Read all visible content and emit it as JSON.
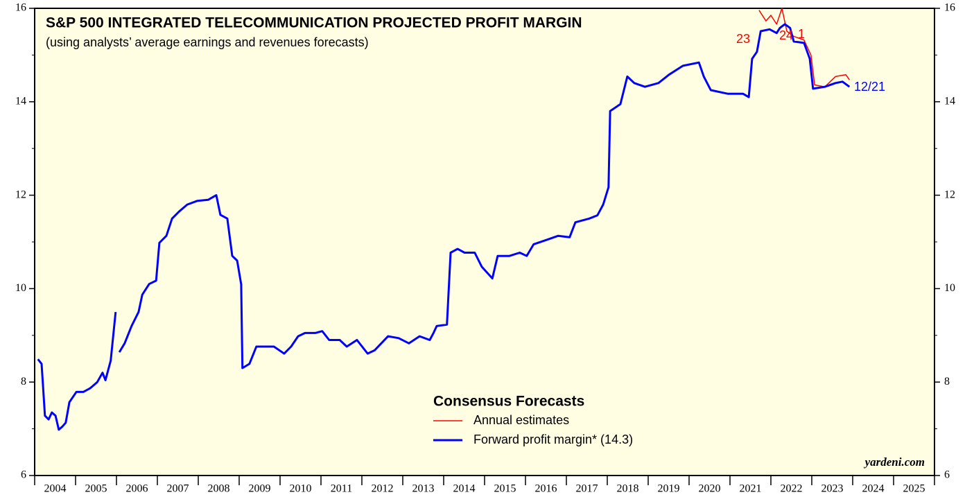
{
  "chart_data": {
    "type": "line",
    "title": "S&P 500 INTEGRATED TELECOMMUNICATION PROJECTED PROFIT MARGIN",
    "subtitle": "(using analysts’ average earnings and revenues forecasts)",
    "legend_title": "Consensus Forecasts",
    "source": "yardeni.com",
    "annotations": [
      "23",
      "24",
      "1",
      "12/21"
    ],
    "xlim": [
      2004,
      2026
    ],
    "xticks": [
      2004,
      2005,
      2006,
      2007,
      2008,
      2009,
      2010,
      2011,
      2012,
      2013,
      2014,
      2015,
      2016,
      2017,
      2018,
      2019,
      2020,
      2021,
      2022,
      2023,
      2024,
      2025,
      2026
    ],
    "categories": [
      "2004",
      "2005",
      "2006",
      "2007",
      "2008",
      "2009",
      "2010",
      "2011",
      "2012",
      "2013",
      "2014",
      "2015",
      "2016",
      "2017",
      "2018",
      "2019",
      "2020",
      "2021",
      "2022",
      "2023",
      "2024",
      "2025"
    ],
    "ylim": [
      6,
      16
    ],
    "yticks": [
      6,
      8,
      10,
      12,
      14,
      16
    ],
    "yminor": [
      7,
      9,
      11,
      13,
      15
    ],
    "series": [
      {
        "name": "Annual estimates",
        "color": "#ff0000",
        "x": [
          2021.71,
          2021.88,
          2022.0,
          2022.14,
          2022.27,
          2022.39,
          2022.56,
          2022.81,
          2022.98,
          2023.07,
          2023.32,
          2023.58,
          2023.83,
          2023.92
        ],
        "values": [
          15.96,
          15.73,
          15.85,
          15.66,
          16.0,
          15.51,
          15.4,
          15.32,
          15.0,
          14.36,
          14.32,
          14.54,
          14.58,
          14.47
        ]
      },
      {
        "name": "Forward profit margin* (14.3)",
        "color": "#0000ff",
        "x": [
          2004.08,
          2004.17,
          2004.25,
          2004.34,
          2004.42,
          2004.51,
          2004.59,
          2004.68,
          2004.76,
          2004.85,
          2005.02,
          2005.19,
          2005.36,
          2005.53,
          2005.66,
          2005.73,
          2005.86,
          2005.98,
          2006.0,
          2006.07,
          2006.2,
          2006.37,
          2006.54,
          2006.63,
          2006.8,
          2006.97,
          2007.05,
          2007.22,
          2007.36,
          2007.53,
          2007.73,
          2007.98,
          2008.24,
          2008.44,
          2008.54,
          2008.71,
          2008.83,
          2008.95,
          2009.05,
          2009.08,
          2009.25,
          2009.42,
          2009.59,
          2009.85,
          2010.1,
          2010.27,
          2010.44,
          2010.61,
          2010.86,
          2011.03,
          2011.2,
          2011.46,
          2011.63,
          2011.88,
          2012.14,
          2012.31,
          2012.64,
          2012.9,
          2013.15,
          2013.41,
          2013.66,
          2013.75,
          2013.83,
          2014.08,
          2014.17,
          2014.34,
          2014.51,
          2014.76,
          2014.93,
          2015.19,
          2015.32,
          2015.61,
          2015.86,
          2016.03,
          2016.2,
          2016.54,
          2016.8,
          2017.08,
          2017.22,
          2017.56,
          2017.76,
          2017.9,
          2018.03,
          2018.07,
          2018.32,
          2018.49,
          2018.66,
          2018.92,
          2019.25,
          2019.51,
          2019.85,
          2020.24,
          2020.36,
          2020.53,
          2020.95,
          2021.32,
          2021.46,
          2021.54,
          2021.66,
          2021.75,
          2021.97,
          2022.14,
          2022.22,
          2022.34,
          2022.47,
          2022.56,
          2022.81,
          2022.95,
          2023.03,
          2023.32,
          2023.58,
          2023.75,
          2023.92
        ],
        "values": [
          8.49,
          8.39,
          7.28,
          7.2,
          7.35,
          7.28,
          6.98,
          7.05,
          7.13,
          7.57,
          7.79,
          7.79,
          7.87,
          8.0,
          8.2,
          8.04,
          8.46,
          9.5,
          null,
          8.64,
          8.83,
          9.2,
          9.5,
          9.87,
          10.1,
          10.17,
          10.98,
          11.13,
          11.5,
          11.65,
          11.8,
          11.88,
          11.9,
          12.0,
          11.58,
          11.5,
          10.7,
          10.6,
          10.09,
          8.3,
          8.39,
          8.76,
          8.76,
          8.76,
          8.61,
          8.76,
          8.98,
          9.05,
          9.05,
          9.09,
          8.9,
          8.9,
          8.76,
          8.9,
          8.61,
          8.68,
          8.98,
          8.94,
          8.83,
          8.98,
          8.9,
          9.05,
          9.2,
          9.23,
          10.77,
          10.85,
          10.77,
          10.77,
          10.47,
          10.22,
          10.7,
          10.7,
          10.77,
          10.7,
          10.95,
          11.05,
          11.13,
          11.1,
          11.42,
          11.5,
          11.57,
          11.8,
          12.17,
          13.8,
          13.95,
          14.54,
          14.4,
          14.32,
          14.4,
          14.58,
          14.77,
          14.84,
          14.54,
          14.25,
          14.17,
          14.17,
          14.1,
          14.92,
          15.07,
          15.51,
          15.55,
          15.47,
          15.58,
          15.66,
          15.58,
          15.29,
          15.26,
          14.92,
          14.28,
          14.32,
          14.4,
          14.43,
          14.32
        ]
      }
    ]
  }
}
